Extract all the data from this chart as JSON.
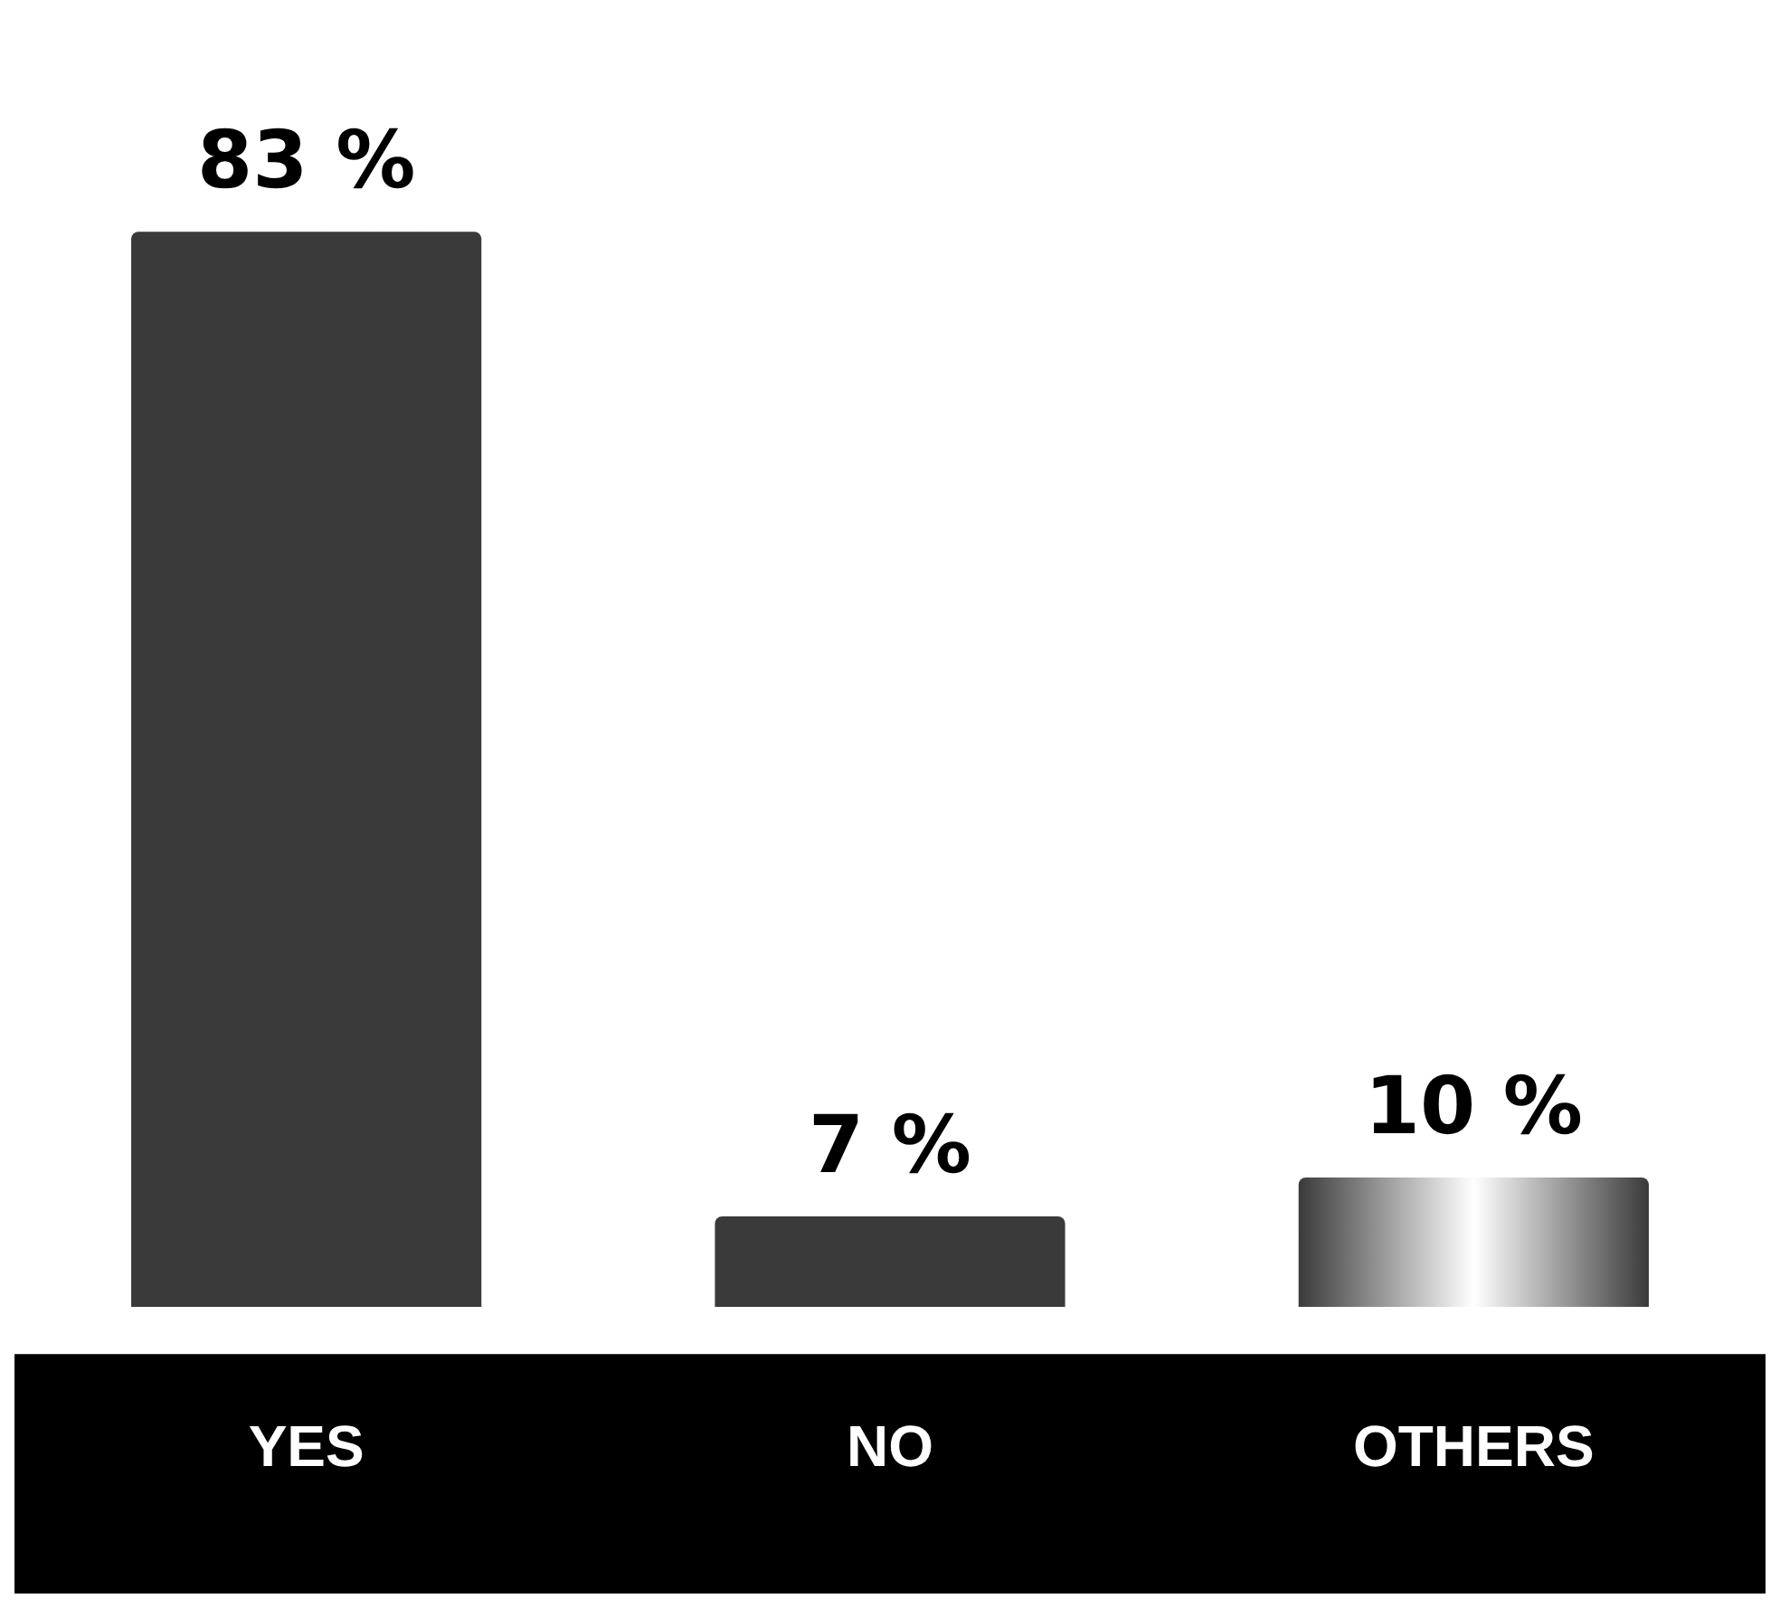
{
  "chart_data": {
    "type": "bar",
    "categories": [
      "YES",
      "NO",
      "OTHERS"
    ],
    "values": [
      83,
      7,
      10
    ],
    "value_labels": [
      "83 %",
      "7 %",
      "10 %"
    ],
    "color": "#3a3a3a",
    "tick_labels": "x",
    "grid": false,
    "legend": false
  }
}
